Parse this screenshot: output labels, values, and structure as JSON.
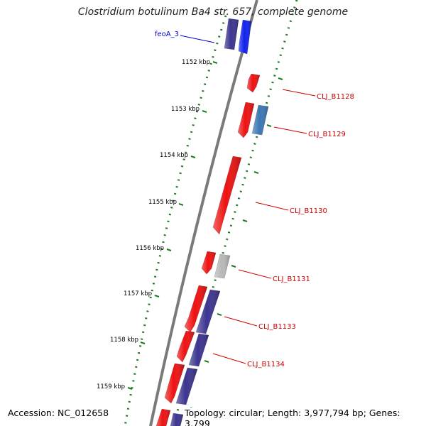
{
  "title": "Clostridium botulinum Ba4 str. 657, complete genome",
  "footer": {
    "accession": "Accession: NC_012658",
    "topology": "Topology: circular; Length: 3,977,794 bp; Genes: 3,799"
  },
  "colors": {
    "backbone": "#7a7a7a",
    "tick_dots": "#1e7a1e",
    "tick_mark": "#1e7a1e",
    "gene_red": "#ee1111",
    "gene_navy": "#3c3490",
    "gene_blue": "#1122ee",
    "gene_steel": "#3c78b4",
    "gene_gray": "#b8b8b8",
    "label_red": "#cc0000",
    "label_blue": "#0000cc"
  },
  "scale": {
    "ticks": [
      {
        "label": "1152 kbp"
      },
      {
        "label": "1153 kbp"
      },
      {
        "label": "1154 kbp"
      },
      {
        "label": "1155 kbp"
      },
      {
        "label": "1156 kbp"
      },
      {
        "label": "1157 kbp"
      },
      {
        "label": "1158 kbp"
      },
      {
        "label": "1159 kbp"
      }
    ]
  },
  "genes": [
    {
      "name": "feoA_3",
      "strand": "forward",
      "color": "gene_blue",
      "labeled": true
    },
    {
      "name": "feoA_3 neighbor",
      "strand": "reverse",
      "color": "gene_navy",
      "labeled": false
    },
    {
      "name": "CLJ_B1128",
      "strand": "forward",
      "color": "gene_red",
      "labeled": true
    },
    {
      "name": "CLJ_B1129",
      "strand": "forward",
      "color": "gene_steel",
      "labeled": true
    },
    {
      "name": "CLJ_B1129 neighbor",
      "strand": "forward",
      "color": "gene_red",
      "labeled": false
    },
    {
      "name": "CLJ_B1130",
      "strand": "forward",
      "color": "gene_red",
      "labeled": true
    },
    {
      "name": "CLJ_B1131",
      "strand": "forward",
      "color": "gene_gray",
      "labeled": true
    },
    {
      "name": "CLJ_B1131 neighbor",
      "strand": "forward",
      "color": "gene_red",
      "labeled": false
    },
    {
      "name": "CLJ_B1133",
      "strand": "forward",
      "color": "gene_navy",
      "labeled": true
    },
    {
      "name": "CLJ_B1133 neighbor",
      "strand": "forward",
      "color": "gene_red",
      "labeled": false
    },
    {
      "name": "CLJ_B1134",
      "strand": "forward",
      "color": "gene_navy",
      "labeled": true
    },
    {
      "name": "CLJ_B1134 neighbor",
      "strand": "forward",
      "color": "gene_red",
      "labeled": false
    },
    {
      "name": "trailing red",
      "strand": "forward",
      "color": "gene_red",
      "labeled": false
    },
    {
      "name": "trailing navy",
      "strand": "forward",
      "color": "gene_navy",
      "labeled": false
    },
    {
      "name": "bottom red",
      "strand": "forward",
      "color": "gene_red",
      "labeled": false
    },
    {
      "name": "bottom navy",
      "strand": "forward",
      "color": "gene_navy",
      "labeled": false
    }
  ],
  "labels": [
    {
      "text": "feoA_3",
      "color": "label_blue"
    },
    {
      "text": "CLJ_B1128",
      "color": "label_red"
    },
    {
      "text": "CLJ_B1129",
      "color": "label_red"
    },
    {
      "text": "CLJ_B1130",
      "color": "label_red"
    },
    {
      "text": "CLJ_B1131",
      "color": "label_red"
    },
    {
      "text": "CLJ_B1133",
      "color": "label_red"
    },
    {
      "text": "CLJ_B1134",
      "color": "label_red"
    }
  ]
}
